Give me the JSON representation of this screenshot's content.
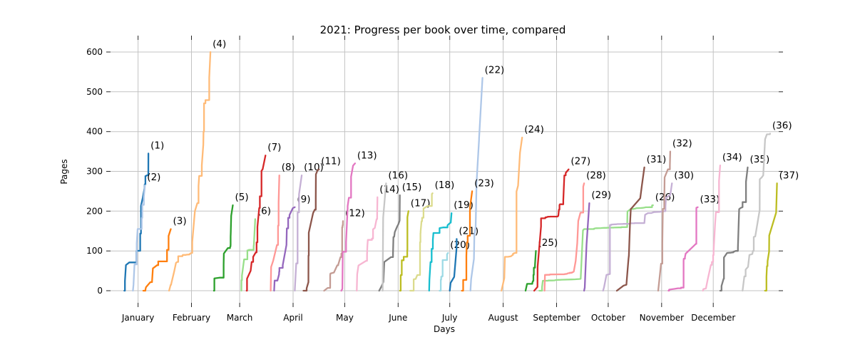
{
  "chart_data": {
    "type": "line",
    "title": "2021: Progress per book over time, compared",
    "xlabel": "Days",
    "ylabel": "Pages",
    "grid": true,
    "legend": "none (series annotated with end-of-line labels)",
    "x_axis": {
      "tick_labels": [
        "January",
        "February",
        "March",
        "April",
        "May",
        "June",
        "July",
        "August",
        "September",
        "October",
        "November",
        "December"
      ],
      "tick_days": [
        14,
        45,
        73,
        104,
        134,
        165,
        195,
        226,
        257,
        287,
        318,
        348
      ],
      "xlim_days": [
        -2,
        386
      ]
    },
    "y_axis": {
      "ticks": [
        0,
        100,
        200,
        300,
        400,
        500,
        600
      ],
      "ylim": [
        0,
        630
      ]
    },
    "series": [
      {
        "book": 1,
        "label": "(1)",
        "color": "#1f77b4",
        "start_day": 6,
        "end_day": 20,
        "final_pages": 345
      },
      {
        "book": 2,
        "label": "(2)",
        "color": "#aec7e8",
        "start_day": 11,
        "end_day": 18,
        "final_pages": 265
      },
      {
        "book": 3,
        "label": "(3)",
        "color": "#ff7f0e",
        "start_day": 17,
        "end_day": 33,
        "final_pages": 155
      },
      {
        "book": 4,
        "label": "(4)",
        "color": "#ffbb78",
        "start_day": 32,
        "end_day": 56,
        "final_pages": 600,
        "points": [
          [
            36,
            70
          ],
          [
            40,
            90
          ],
          [
            45,
            95
          ],
          [
            47,
            200
          ],
          [
            52,
            400
          ]
        ]
      },
      {
        "book": 5,
        "label": "(5)",
        "color": "#2ca02c",
        "start_day": 58,
        "end_day": 69,
        "final_pages": 215
      },
      {
        "book": 6,
        "label": "(6)",
        "color": "#98df8a",
        "start_day": 74,
        "end_day": 82,
        "final_pages": 180
      },
      {
        "book": 7,
        "label": "(7)",
        "color": "#d62728",
        "start_day": 77,
        "end_day": 88,
        "final_pages": 340
      },
      {
        "book": 8,
        "label": "(8)",
        "color": "#ff9896",
        "start_day": 91,
        "end_day": 96,
        "final_pages": 290
      },
      {
        "book": 9,
        "label": "(9)",
        "color": "#9467bd",
        "start_day": 93,
        "end_day": 105,
        "final_pages": 210
      },
      {
        "book": 10,
        "label": "(10)",
        "color": "#c5b0d5",
        "start_day": 105,
        "end_day": 109,
        "final_pages": 290
      },
      {
        "book": 11,
        "label": "(11)",
        "color": "#8c564b",
        "start_day": 110,
        "end_day": 119,
        "final_pages": 305
      },
      {
        "book": 12,
        "label": "(12)",
        "color": "#c49c94",
        "start_day": 122,
        "end_day": 133,
        "final_pages": 175
      },
      {
        "book": 13,
        "label": "(13)",
        "color": "#e377c2",
        "start_day": 132,
        "end_day": 140,
        "final_pages": 320
      },
      {
        "book": 14,
        "label": "(14)",
        "color": "#f7b6d2",
        "start_day": 141,
        "end_day": 153,
        "final_pages": 235
      },
      {
        "book": 15,
        "label": "(15)",
        "color": "#7f7f7f",
        "start_day": 154,
        "end_day": 166,
        "final_pages": 240
      },
      {
        "book": 16,
        "label": "(16)",
        "color": "#c7c7c7",
        "start_day": 156,
        "end_day": 158,
        "final_pages": 270
      },
      {
        "book": 17,
        "label": "(17)",
        "color": "#bcbd22",
        "start_day": 166,
        "end_day": 171,
        "final_pages": 200
      },
      {
        "book": 18,
        "label": "(18)",
        "color": "#dbdb8d",
        "start_day": 172,
        "end_day": 185,
        "final_pages": 245
      },
      {
        "book": 19,
        "label": "(19)",
        "color": "#17becf",
        "start_day": 183,
        "end_day": 196,
        "final_pages": 195
      },
      {
        "book": 20,
        "label": "(20)",
        "color": "#9edae5",
        "start_day": 189,
        "end_day": 194,
        "final_pages": 95
      },
      {
        "book": 21,
        "label": "(21)",
        "color": "#1f77b4",
        "start_day": 195,
        "end_day": 199,
        "final_pages": 130
      },
      {
        "book": 22,
        "label": "(22)",
        "color": "#aec7e8",
        "start_day": 207,
        "end_day": 214,
        "final_pages": 535,
        "points": [
          [
            209,
            80
          ],
          [
            210,
            160
          ],
          [
            212,
            380
          ]
        ]
      },
      {
        "book": 23,
        "label": "(23)",
        "color": "#ff7f0e",
        "start_day": 202,
        "end_day": 208,
        "final_pages": 250
      },
      {
        "book": 24,
        "label": "(24)",
        "color": "#ffbb78",
        "start_day": 225,
        "end_day": 237,
        "final_pages": 385,
        "points": [
          [
            227,
            85
          ],
          [
            233,
            95
          ]
        ]
      },
      {
        "book": 25,
        "label": "(25)",
        "color": "#2ca02c",
        "start_day": 239,
        "end_day": 245,
        "final_pages": 100
      },
      {
        "book": 26,
        "label": "(26)",
        "color": "#98df8a",
        "start_day": 247,
        "end_day": 313,
        "final_pages": 215,
        "points": [
          [
            249,
            25
          ],
          [
            271,
            30
          ],
          [
            273,
            155
          ],
          [
            298,
            160
          ],
          [
            300,
            205
          ],
          [
            311,
            210
          ]
        ]
      },
      {
        "book": 27,
        "label": "(27)",
        "color": "#d62728",
        "start_day": 244,
        "end_day": 264,
        "final_pages": 305,
        "points": [
          [
            246,
            60
          ],
          [
            248,
            182
          ],
          [
            258,
            188
          ]
        ]
      },
      {
        "book": 28,
        "label": "(28)",
        "color": "#ff9896",
        "start_day": 250,
        "end_day": 273,
        "final_pages": 270,
        "points": [
          [
            252,
            40
          ],
          [
            267,
            48
          ],
          [
            269,
            120
          ]
        ]
      },
      {
        "book": 29,
        "label": "(29)",
        "color": "#9467bd",
        "start_day": 273,
        "end_day": 276,
        "final_pages": 220
      },
      {
        "book": 30,
        "label": "(30)",
        "color": "#c5b0d5",
        "start_day": 284,
        "end_day": 324,
        "final_pages": 270,
        "points": [
          [
            286,
            40
          ],
          [
            288,
            165
          ],
          [
            308,
            170
          ],
          [
            310,
            195
          ],
          [
            320,
            200
          ]
        ]
      },
      {
        "book": 31,
        "label": "(31)",
        "color": "#8c564b",
        "start_day": 292,
        "end_day": 308,
        "final_pages": 310
      },
      {
        "book": 32,
        "label": "(32)",
        "color": "#c49c94",
        "start_day": 316,
        "end_day": 323,
        "final_pages": 350
      },
      {
        "book": 33,
        "label": "(33)",
        "color": "#e377c2",
        "start_day": 322,
        "end_day": 339,
        "final_pages": 210
      },
      {
        "book": 34,
        "label": "(34)",
        "color": "#f7b6d2",
        "start_day": 342,
        "end_day": 352,
        "final_pages": 315
      },
      {
        "book": 35,
        "label": "(35)",
        "color": "#7f7f7f",
        "start_day": 352,
        "end_day": 368,
        "final_pages": 310,
        "points": [
          [
            354,
            30
          ],
          [
            356,
            95
          ],
          [
            361,
            100
          ],
          [
            363,
            205
          ],
          [
            365,
            210
          ]
        ]
      },
      {
        "book": 36,
        "label": "(36)",
        "color": "#c7c7c7",
        "start_day": 365,
        "end_day": 381,
        "final_pages": 395,
        "points": [
          [
            369,
            90
          ],
          [
            371,
            100
          ],
          [
            375,
            280
          ],
          [
            377,
            290
          ]
        ]
      },
      {
        "book": 37,
        "label": "(37)",
        "color": "#bcbd22",
        "start_day": 378,
        "end_day": 385,
        "final_pages": 270
      }
    ],
    "style": {
      "grid_color": "#c3c3c3",
      "tick_color": "#262626",
      "background": "#ffffff",
      "line_width": 2.3
    }
  }
}
